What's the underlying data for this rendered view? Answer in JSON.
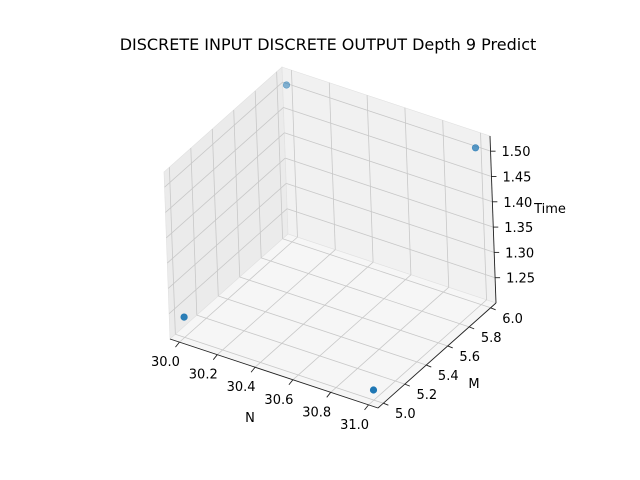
{
  "chart_data": {
    "type": "scatter",
    "projection": "3d",
    "title": "DISCRETE INPUT DISCRETE OUTPUT Depth 9 Predict",
    "xlabel": "N",
    "ylabel": "M",
    "zlabel": "Time",
    "xlim": [
      29.95,
      31.05
    ],
    "ylim": [
      4.95,
      6.05
    ],
    "zlim": [
      1.2,
      1.53
    ],
    "xticks": [
      "30.0",
      "30.2",
      "30.4",
      "30.6",
      "30.8",
      "31.0"
    ],
    "yticks": [
      "5.0",
      "5.2",
      "5.4",
      "5.6",
      "5.8",
      "6.0"
    ],
    "zticks": [
      "1.25",
      "1.30",
      "1.35",
      "1.40",
      "1.45",
      "1.50"
    ],
    "grid": true,
    "marker_color": "#1f77b4",
    "points": [
      {
        "x": 30,
        "y": 5,
        "z": 1.24
      },
      {
        "x": 31,
        "y": 5,
        "z": 1.22
      },
      {
        "x": 30,
        "y": 6,
        "z": 1.51
      },
      {
        "x": 31,
        "y": 6,
        "z": 1.51
      }
    ]
  }
}
